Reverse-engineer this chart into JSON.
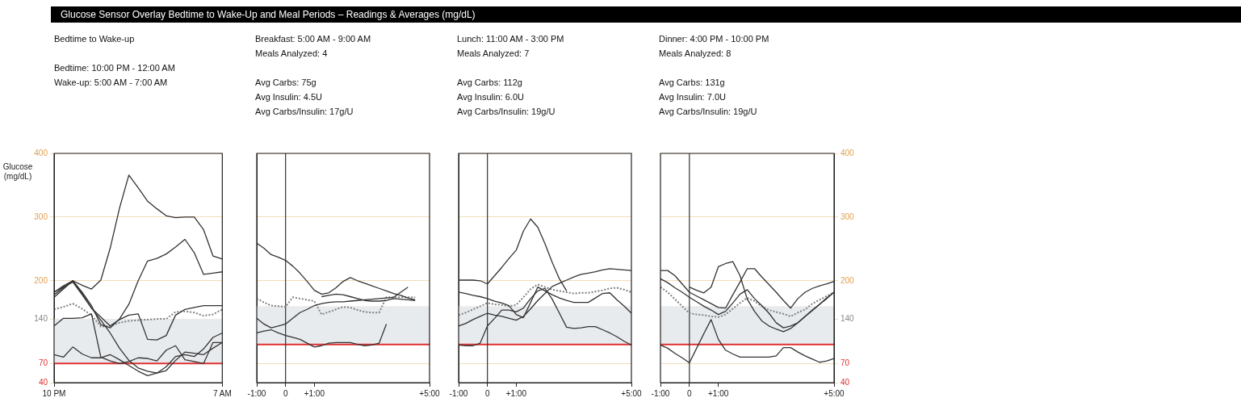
{
  "chart_data": [
    {
      "type": "line",
      "title": "Glucose Sensor Overlay Bedtime to Wake-Up and Meal Periods – Readings & Averages (mg/dL)",
      "subtitle": "Bedtime to Wake-up",
      "annotations": [
        "Bedtime: 10:00 PM - 12:00 AM",
        "Wake-up: 5:00 AM - 7:00 AM"
      ],
      "ylabel": "Glucose (mg/dL)",
      "categories": [
        "10 PM",
        null,
        null,
        null,
        null,
        null,
        null,
        null,
        null,
        null,
        null,
        null,
        null,
        null,
        null,
        null,
        null,
        null,
        "7 AM"
      ],
      "ylim": [
        40,
        400
      ],
      "yticks": [
        40,
        70,
        140,
        200,
        300,
        400
      ],
      "grid": "y",
      "bands": [
        {
          "axis": "y",
          "from": 70,
          "to": 140,
          "color": "#e8ebee"
        }
      ],
      "ref_lines": [
        {
          "axis": "y",
          "value": 70,
          "color": "#e03030"
        }
      ],
      "series": [
        {
          "color": "#333333",
          "values": [
            178,
            189,
            200,
            193,
            187,
            201,
            251,
            314,
            366,
            346,
            325,
            313,
            302,
            299,
            300,
            300,
            280,
            239,
            234
          ]
        },
        {
          "color": "#333333",
          "values": [
            174,
            187,
            200,
            182,
            161,
            131,
            126,
            140,
            163,
            200,
            231,
            235,
            242,
            253,
            265,
            244,
            210,
            212,
            214
          ]
        },
        {
          "color": "#333333",
          "values": [
            182,
            192,
            200,
            180,
            157,
            143,
            129,
            139,
            146,
            148,
            108,
            107,
            114,
            146,
            155,
            158,
            161,
            161,
            161
          ]
        },
        {
          "color": "#333333",
          "values": [
            129,
            141,
            141,
            142,
            148,
            80,
            74,
            70,
            73,
            79,
            78,
            74,
            91,
            98,
            76,
            73,
            70,
            103,
            103
          ]
        },
        {
          "color": "#333333",
          "values": [
            84,
            80,
            96,
            85,
            79,
            79,
            84,
            76,
            67,
            58,
            51,
            55,
            65,
            81,
            84,
            81,
            93,
            111,
            118
          ]
        },
        {
          "color": "#333333",
          "values": [
            182,
            190,
            198,
            178,
            157,
            138,
            118,
            94,
            75,
            63,
            58,
            55,
            59,
            75,
            88,
            86,
            84,
            94,
            103
          ]
        },
        {
          "color": "#808080",
          "line_style": "dotted",
          "values": [
            155,
            159,
            164,
            156,
            146,
            128,
            129,
            134,
            137,
            138,
            139,
            140,
            140,
            151,
            152,
            150,
            145,
            147,
            155
          ]
        }
      ]
    },
    {
      "type": "line",
      "subtitle": "Breakfast: 5:00 AM - 9:00 AM",
      "annotations": [
        "Meals Analyzed: 4",
        "Avg Carbs: 75g",
        "Avg Insulin: 4.5U",
        "Avg Carbs/Insulin: 17g/U"
      ],
      "categories": [
        "-1:00",
        null,
        null,
        null,
        "0",
        null,
        null,
        null,
        "+1:00",
        null,
        null,
        null,
        null,
        null,
        null,
        null,
        null,
        null,
        null,
        null,
        null,
        null,
        null,
        null,
        "+5:00"
      ],
      "ylim": [
        40,
        400
      ],
      "yticks": [
        40,
        70,
        140,
        200,
        300,
        400
      ],
      "grid": "y",
      "tick_labels": "x",
      "bands": [
        {
          "axis": "y",
          "from": 100,
          "to": 160,
          "color": "#e8ebee"
        }
      ],
      "ref_lines": [
        {
          "axis": "y",
          "value": 100,
          "color": "#e03030"
        },
        {
          "axis": "x",
          "value": "0",
          "color": "#333333"
        }
      ],
      "series": [
        {
          "color": "#333333",
          "values": [
            259,
            251,
            241,
            237,
            232,
            223,
            212,
            199,
            185,
            179,
            181,
            189,
            199,
            205,
            200,
            196,
            192,
            188,
            184,
            180,
            177,
            173,
            170,
            null,
            null
          ]
        },
        {
          "color": "#333333",
          "values": [
            null,
            null,
            null,
            null,
            null,
            null,
            null,
            null,
            null,
            175,
            177,
            179,
            178,
            175,
            172,
            169,
            168,
            168,
            169,
            172,
            171,
            170,
            169,
            null,
            null
          ]
        },
        {
          "color": "#333333",
          "values": [
            141,
            132,
            126,
            129,
            132,
            141,
            150,
            155,
            161,
            164,
            166,
            167,
            167,
            168,
            169,
            170,
            171,
            172,
            173,
            174,
            182,
            190,
            null,
            null,
            null
          ]
        },
        {
          "color": "#333333",
          "values": [
            118,
            121,
            123,
            118,
            114,
            111,
            108,
            102,
            96,
            98,
            102,
            103,
            103,
            103,
            100,
            98,
            99,
            102,
            132,
            null,
            null,
            null,
            null,
            null,
            null
          ]
        },
        {
          "color": "#808080",
          "line_style": "dotted",
          "values": [
            172,
            166,
            161,
            160,
            159,
            174,
            172,
            170,
            168,
            147,
            151,
            155,
            159,
            158,
            154,
            151,
            150,
            150,
            174,
            174,
            174,
            174,
            174,
            null,
            null
          ]
        }
      ]
    },
    {
      "type": "line",
      "subtitle": "Lunch: 11:00 AM - 3:00 PM",
      "annotations": [
        "Meals Analyzed: 7",
        "Avg Carbs: 112g",
        "Avg Insulin: 6.0U",
        "Avg Carbs/Insulin: 19g/U"
      ],
      "categories": [
        "-1:00",
        null,
        null,
        null,
        "0",
        null,
        null,
        null,
        "+1:00",
        null,
        null,
        null,
        null,
        null,
        null,
        null,
        null,
        null,
        null,
        null,
        null,
        null,
        null,
        null,
        "+5:00"
      ],
      "ylim": [
        40,
        400
      ],
      "yticks": [
        40,
        70,
        140,
        200,
        300,
        400
      ],
      "grid": "y",
      "tick_labels": "x",
      "bands": [
        {
          "axis": "y",
          "from": 100,
          "to": 160,
          "color": "#e8ebee"
        }
      ],
      "ref_lines": [
        {
          "axis": "y",
          "value": 100,
          "color": "#e03030"
        },
        {
          "axis": "x",
          "value": "0",
          "color": "#333333"
        }
      ],
      "series": [
        {
          "color": "#333333",
          "values": [
            201,
            201,
            201,
            200,
            195,
            208,
            221,
            235,
            248,
            278,
            297,
            284,
            258,
            229,
            203,
            184,
            null,
            null,
            null,
            null,
            null,
            null,
            null,
            null,
            null
          ]
        },
        {
          "color": "#333333",
          "values": [
            129,
            133,
            139,
            144,
            149,
            146,
            144,
            141,
            138,
            144,
            156,
            169,
            180,
            191,
            196,
            201,
            206,
            210,
            212,
            214,
            217,
            219,
            218,
            217,
            216
          ]
        },
        {
          "color": "#333333",
          "values": [
            99,
            98,
            98,
            102,
            129,
            141,
            154,
            154,
            151,
            157,
            172,
            184,
            188,
            171,
            149,
            127,
            125,
            126,
            128,
            128,
            123,
            118,
            112,
            105,
            99
          ]
        },
        {
          "color": "#333333",
          "values": [
            182,
            180,
            177,
            175,
            172,
            168,
            165,
            161,
            147,
            142,
            166,
            190,
            184,
            178,
            173,
            169,
            166,
            166,
            166,
            173,
            180,
            181,
            170,
            160,
            149
          ]
        },
        {
          "color": "#808080",
          "line_style": "dotted",
          "values": [
            146,
            150,
            155,
            160,
            165,
            163,
            162,
            160,
            162,
            174,
            187,
            194,
            190,
            186,
            184,
            182,
            180,
            181,
            181,
            183,
            185,
            188,
            189,
            186,
            182
          ]
        }
      ]
    },
    {
      "type": "line",
      "subtitle": "Dinner: 4:00 PM - 10:00 PM",
      "annotations": [
        "Meals Analyzed: 8",
        "Avg Carbs: 131g",
        "Avg Insulin: 7.0U",
        "Avg Carbs/Insulin: 19g/U"
      ],
      "categories": [
        "-1:00",
        null,
        null,
        null,
        "0",
        null,
        null,
        null,
        "+1:00",
        null,
        null,
        null,
        null,
        null,
        null,
        null,
        null,
        null,
        null,
        null,
        null,
        null,
        null,
        null,
        "+5:00"
      ],
      "y2lim": [
        40,
        400
      ],
      "y2ticks": [
        40,
        70,
        140,
        200,
        300,
        400
      ],
      "grid": "y",
      "bands": [
        {
          "axis": "y2",
          "from": 100,
          "to": 160,
          "color": "#e8ebee"
        }
      ],
      "ref_lines": [
        {
          "axis": "y2",
          "value": 100,
          "color": "#e03030"
        },
        {
          "axis": "x",
          "value": "0",
          "color": "#333333"
        }
      ],
      "series": [
        {
          "axis": "y2",
          "color": "#333333",
          "values": [
            216,
            216,
            208,
            195,
            182,
            176,
            170,
            164,
            158,
            157,
            178,
            198,
            219,
            219,
            206,
            194,
            182,
            169,
            157,
            172,
            182,
            188,
            192,
            195,
            199
          ]
        },
        {
          "axis": "y2",
          "color": "#333333",
          "values": [
            203,
            197,
            189,
            182,
            174,
            167,
            160,
            154,
            147,
            152,
            165,
            179,
            186,
            172,
            161,
            149,
            134,
            126,
            129,
            134,
            144,
            153,
            163,
            172,
            182
          ]
        },
        {
          "axis": "y2",
          "color": "#333333",
          "values": [
            99,
            94,
            86,
            79,
            71,
            94,
            117,
            139,
            108,
            91,
            85,
            80,
            80,
            80,
            80,
            80,
            82,
            95,
            95,
            88,
            82,
            77,
            72,
            74,
            78
          ]
        },
        {
          "axis": "y2",
          "color": "#333333",
          "values": [
            null,
            null,
            null,
            null,
            190,
            185,
            181,
            190,
            222,
            227,
            230,
            208,
            171,
            152,
            137,
            129,
            124,
            120,
            125,
            134,
            144,
            154,
            163,
            173,
            182
          ]
        },
        {
          "axis": "y2",
          "color": "#808080",
          "line_style": "dotted",
          "values": [
            190,
            182,
            171,
            160,
            149,
            147,
            146,
            144,
            143,
            147,
            156,
            165,
            173,
            168,
            160,
            154,
            151,
            148,
            144,
            150,
            155,
            164,
            170,
            176,
            182
          ]
        }
      ]
    }
  ]
}
